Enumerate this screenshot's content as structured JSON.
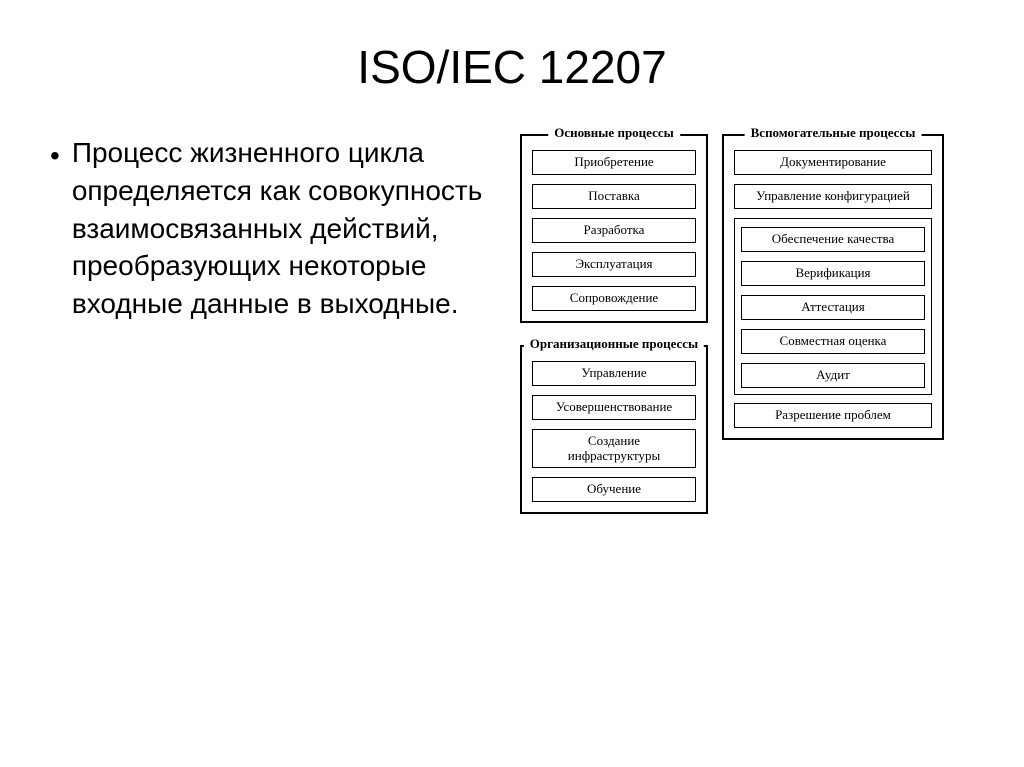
{
  "title": "ISO/IEC 12207",
  "bullet_text": "Процесс жизненного цикла определяется как совокупность взаимосвязанных действий, преобразующих некоторые входные данные в выходные.",
  "groups": {
    "main": {
      "title": "Основные процессы",
      "items": [
        "Приобретение",
        "Поставка",
        "Разработка",
        "Эксплуатация",
        "Сопровождение"
      ]
    },
    "org": {
      "title": "Организационные процессы",
      "items": [
        "Управление",
        "Усовершенствование",
        "Создание инфраструктуры",
        "Обучение"
      ]
    },
    "aux": {
      "title": "Вспомогательные процессы",
      "top_items": [
        "Документирование",
        "Управление конфигурацией"
      ],
      "inner_items": [
        "Обеспечение качества",
        "Верификация",
        "Аттестация",
        "Совместная оценка",
        "Аудит"
      ],
      "bottom_items": [
        "Разрешение проблем"
      ]
    }
  },
  "colors": {
    "background": "#ffffff",
    "text": "#000000",
    "border": "#000000"
  },
  "fonts": {
    "title_size": 46,
    "body_size": 28,
    "box_size": 13,
    "group_title_size": 13
  }
}
